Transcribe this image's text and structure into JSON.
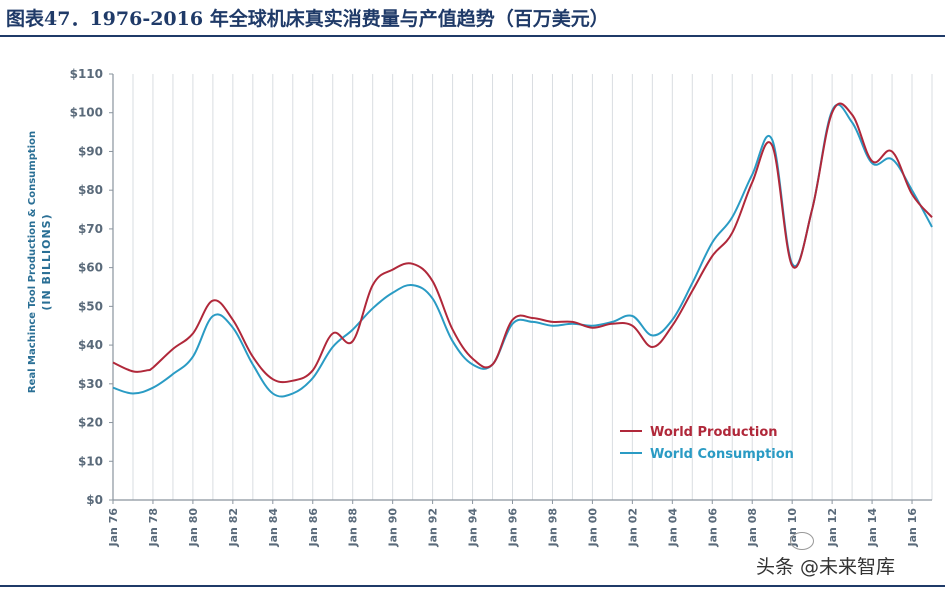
{
  "header": {
    "title": "图表47．1976-2016 年全球机床真实消费量与产值趋势（百万美元）"
  },
  "watermark": {
    "text": "头条 @未来智库"
  },
  "colors": {
    "production": "#b0283a",
    "consumption": "#2a9bc4",
    "axis_text": "#5a6a7a",
    "title": "#1f3a68"
  },
  "chart_data": {
    "type": "line",
    "ylabel_line1": "Real Machince Tool Production & Consumption",
    "ylabel_line2": "(IN BILLIONS)",
    "ylim": [
      0,
      110
    ],
    "xlim": [
      1976,
      2017
    ],
    "yticks": [
      0,
      10,
      20,
      30,
      40,
      50,
      60,
      70,
      80,
      90,
      100,
      110
    ],
    "ytick_labels": [
      "$0",
      "$10",
      "$20",
      "$30",
      "$40",
      "$50",
      "$60",
      "$70",
      "$80",
      "$90",
      "$100",
      "$110"
    ],
    "xticks": [
      1976,
      1978,
      1980,
      1982,
      1984,
      1986,
      1988,
      1990,
      1992,
      1994,
      1996,
      1998,
      2000,
      2002,
      2004,
      2006,
      2008,
      2010,
      2012,
      2014,
      2016
    ],
    "xtick_labels": [
      "Jan 76",
      "Jan 78",
      "Jan 80",
      "Jan 82",
      "Jan 84",
      "Jan 86",
      "Jan 88",
      "Jan 90",
      "Jan 92",
      "Jan 94",
      "Jan 96",
      "Jan 98",
      "Jan 00",
      "Jan 02",
      "Jan 04",
      "Jan 06",
      "Jan 08",
      "Jan 10",
      "Jan 12",
      "Jan 14",
      "Jan 16"
    ],
    "legend_position": "bottom-right",
    "grid": "vertical",
    "series": [
      {
        "name": "World Production",
        "color": "#b0283a",
        "x": [
          1976,
          1977,
          1977.7,
          1978,
          1979,
          1980,
          1981,
          1982,
          1983,
          1984,
          1985,
          1986,
          1987,
          1988,
          1989,
          1990,
          1991,
          1992,
          1993,
          1994,
          1995,
          1996,
          1997,
          1998,
          1999,
          2000,
          2001,
          2002,
          2003,
          2004,
          2005,
          2006,
          2007,
          2008,
          2009,
          2010,
          2011,
          2012,
          2013,
          2014,
          2015,
          2016,
          2017
        ],
        "y": [
          35.5,
          33.2,
          33.5,
          34.2,
          39,
          43,
          51.5,
          46.5,
          37,
          31.2,
          30.8,
          33.5,
          43,
          41,
          55.5,
          59.5,
          61,
          56.5,
          44,
          36.5,
          35,
          46.5,
          47,
          46,
          46,
          44.5,
          45.5,
          45,
          39.5,
          45,
          54,
          63,
          69,
          82,
          91.5,
          60.5,
          75,
          100,
          99.5,
          87.5,
          90,
          79,
          73
        ]
      },
      {
        "name": "World Consumption",
        "color": "#2a9bc4",
        "x": [
          1976,
          1977,
          1978,
          1979,
          1980,
          1981,
          1982,
          1983,
          1984,
          1985,
          1986,
          1987,
          1988,
          1989,
          1990,
          1991,
          1992,
          1993,
          1994,
          1995,
          1996,
          1997,
          1998,
          1999,
          2000,
          2001,
          2002,
          2003,
          2004,
          2005,
          2006,
          2007,
          2008,
          2009,
          2010,
          2011,
          2012,
          2013,
          2014,
          2015,
          2016,
          2017
        ],
        "y": [
          29,
          27.5,
          29,
          32.5,
          37,
          47.5,
          44.5,
          35,
          27.5,
          27.5,
          31.5,
          39.5,
          44,
          49.5,
          53.5,
          55.5,
          52,
          41,
          35,
          35,
          45.5,
          46,
          45,
          45.5,
          45,
          46,
          47.5,
          42.5,
          46.5,
          56,
          66.5,
          73,
          84,
          93,
          61,
          75,
          100.5,
          97.5,
          87,
          88,
          80,
          70.5
        ]
      }
    ]
  }
}
